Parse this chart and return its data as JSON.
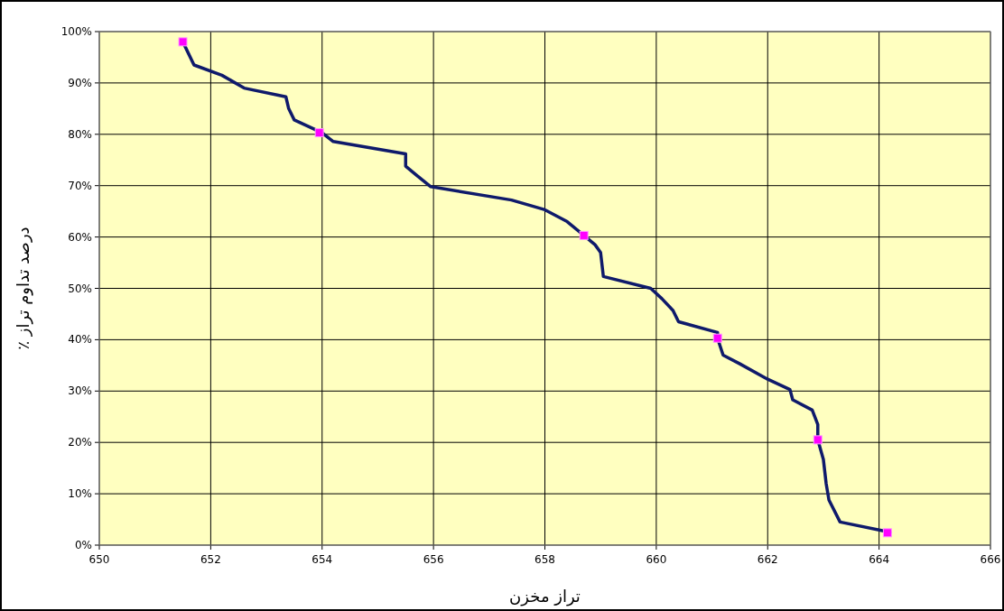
{
  "chart_data": {
    "type": "line",
    "xlabel": "تراز مخزن",
    "ylabel": "درصد تداوم تراز ٪",
    "xlim": [
      650,
      666
    ],
    "xticks": [
      650,
      652,
      654,
      656,
      658,
      660,
      662,
      664,
      666
    ],
    "ylim": [
      0,
      100
    ],
    "yticks": [
      {
        "value": 0,
        "label": "0%"
      },
      {
        "value": 10,
        "label": "10%"
      },
      {
        "value": 20,
        "label": "20%"
      },
      {
        "value": 30,
        "label": "30%"
      },
      {
        "value": 40,
        "label": "40%"
      },
      {
        "value": 50,
        "label": "50%"
      },
      {
        "value": 60,
        "label": "60%"
      },
      {
        "value": 70,
        "label": "70%"
      },
      {
        "value": 80,
        "label": "80%"
      },
      {
        "value": 90,
        "label": "90%"
      },
      {
        "value": 100,
        "label": "100%"
      }
    ],
    "grid": true,
    "series": [
      {
        "type": "line",
        "color": "#0f1a6b",
        "marker": "none",
        "x": [
          651.5,
          651.7,
          652.2,
          652.6,
          653.35,
          653.4,
          653.5,
          654,
          654.2,
          655.5,
          655.5,
          655.7,
          655.95,
          657.4,
          658,
          658.4,
          658.7,
          658.9,
          659,
          659.05,
          659.9,
          660.1,
          660.3,
          660.4,
          661.1,
          661.1,
          661.2,
          661.5,
          662,
          662.4,
          662.45,
          662.8,
          662.9,
          662.9,
          663,
          663.05,
          663.1,
          663.3,
          664.2
        ],
        "values": [
          98,
          93.5,
          91.5,
          89,
          87.3,
          85,
          82.8,
          80.3,
          78.6,
          76.2,
          73.8,
          72,
          69.8,
          67.2,
          65.3,
          63,
          60.3,
          58.5,
          57,
          52.3,
          50,
          48,
          45.7,
          43.5,
          41.4,
          40.3,
          37,
          35.3,
          32.3,
          30.3,
          28.3,
          26.3,
          23.5,
          20.5,
          16.7,
          12,
          8.8,
          4.5,
          2.5
        ]
      },
      {
        "type": "scatter",
        "color": "#ff00ff",
        "marker": "square",
        "x": [
          651.5,
          653.95,
          658.7,
          661.1,
          662.9,
          664.15
        ],
        "values": [
          98,
          80.3,
          60.3,
          40.3,
          20.5,
          2.4
        ]
      }
    ]
  }
}
